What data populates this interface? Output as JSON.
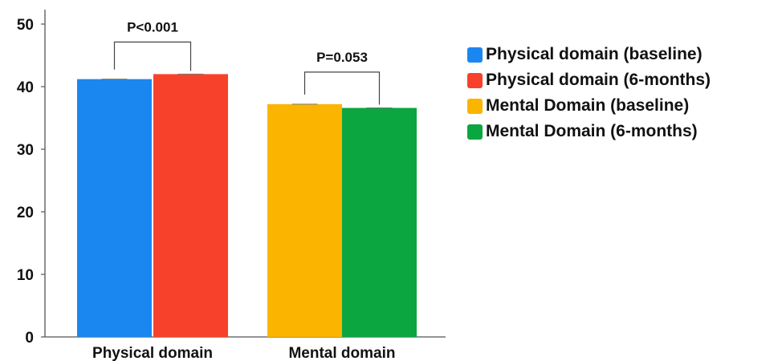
{
  "chart_data": {
    "type": "bar",
    "categories": [
      "Physical domain",
      "Mental domain"
    ],
    "series": [
      {
        "name": "Physical domain (baseline)",
        "category": "Physical domain",
        "value": 41.2,
        "color": "#1a87f0"
      },
      {
        "name": "Physical domain (6-months)",
        "category": "Physical domain",
        "value": 42.0,
        "color": "#f8412a"
      },
      {
        "name": "Mental Domain (baseline)",
        "category": "Mental domain",
        "value": 37.2,
        "color": "#fbb400"
      },
      {
        "name": "Mental Domain (6-months)",
        "category": "Mental domain",
        "value": 36.6,
        "color": "#0ca640"
      }
    ],
    "ylim": [
      0,
      50
    ],
    "yticks": [
      0,
      10,
      20,
      30,
      40,
      50
    ],
    "grid": false,
    "legend_position": "right",
    "annotations": [
      {
        "text": "P<0.001",
        "category": "Physical domain"
      },
      {
        "text": "P=0.053",
        "category": "Mental domain"
      }
    ]
  }
}
